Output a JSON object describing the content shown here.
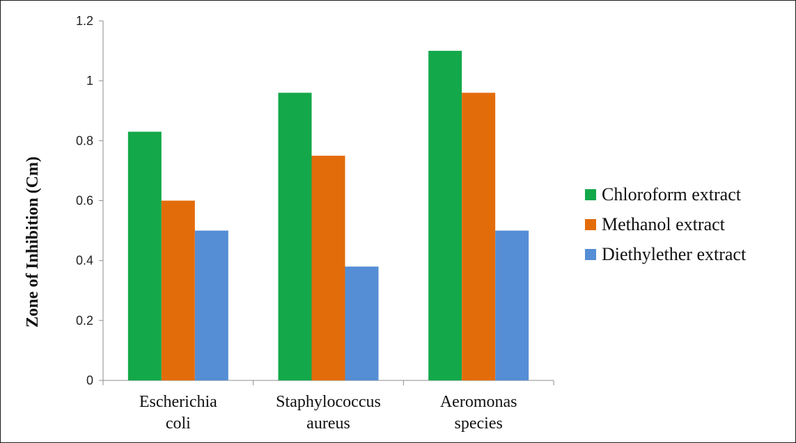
{
  "chart_data": {
    "type": "bar",
    "title": "",
    "xlabel": "",
    "ylabel": "Zone of Inhibition (Cm)",
    "categories": [
      [
        "Escherichia",
        "coli"
      ],
      [
        "Staphylococcus",
        "aureus"
      ],
      [
        "Aeromonas",
        "species"
      ]
    ],
    "series": [
      {
        "name": "Chloroform extract",
        "color": "#13a84a",
        "values": [
          0.83,
          0.96,
          1.1
        ]
      },
      {
        "name": "Methanol extract",
        "color": "#e36c0a",
        "values": [
          0.6,
          0.75,
          0.96
        ]
      },
      {
        "name": "Diethylether extract",
        "color": "#558ed5",
        "values": [
          0.5,
          0.38,
          0.5
        ]
      }
    ],
    "ylim": [
      0,
      1.2
    ],
    "yticks": [
      "0",
      "0.2",
      "0.4",
      "0.6",
      "0.8",
      "1",
      "1.2"
    ],
    "grid": false,
    "legend_position": "right"
  }
}
